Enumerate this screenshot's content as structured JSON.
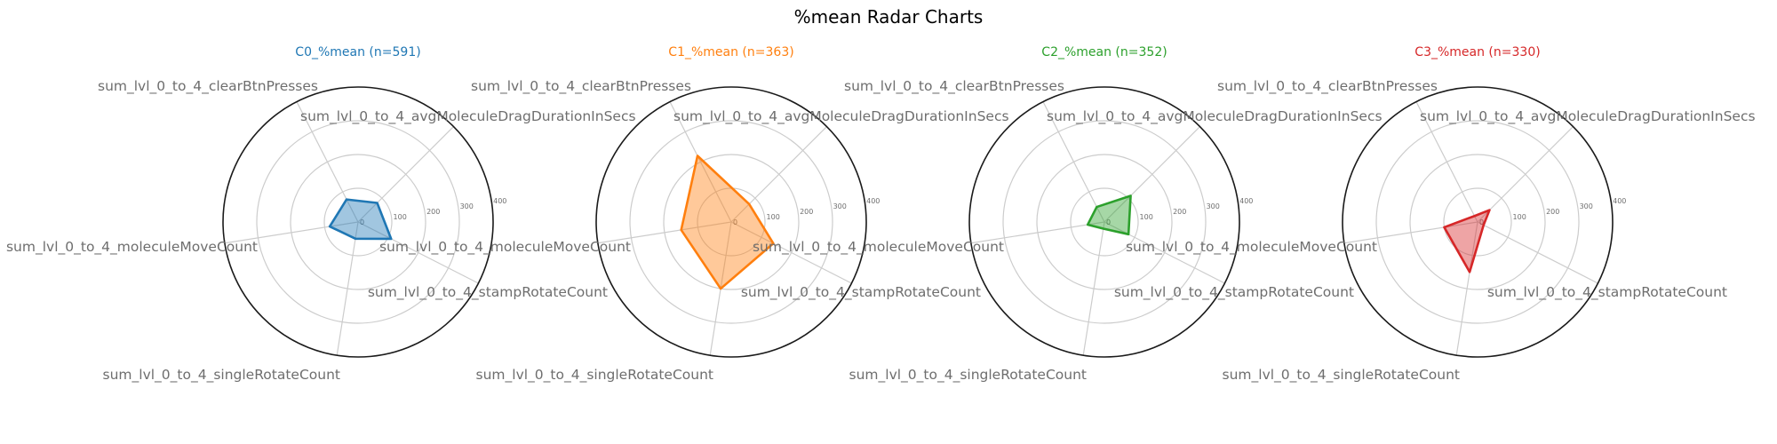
{
  "figure": {
    "title": "%mean Radar Charts"
  },
  "chart_data": [
    {
      "type": "radar",
      "title": "C0_%mean (n=591)",
      "color": "#1f77b4",
      "fill_color": "#1f77b4",
      "rlim": [
        0,
        400
      ],
      "rticks": [
        0,
        100,
        200,
        300,
        400
      ],
      "grid": true,
      "axes": [
        "sum_lvl_0_to_4_avgMoleculeDragDurationInSecs",
        "sum_lvl_0_to_4_clearBtnPresses",
        "sum_lvl_0_to_4_moleculeMoveCount",
        "sum_lvl_0_to_4_singleRotateCount",
        "sum_lvl_0_to_4_stampRotateCount"
      ],
      "values": [
        80,
        75,
        85,
        50,
        110
      ]
    },
    {
      "type": "radar",
      "title": "C1_%mean (n=363)",
      "color": "#ff7f0e",
      "fill_color": "#ff7f0e",
      "rlim": [
        0,
        400
      ],
      "rticks": [
        0,
        100,
        200,
        300,
        400
      ],
      "grid": true,
      "axes": [
        "sum_lvl_0_to_4_avgMoleculeDragDurationInSecs",
        "sum_lvl_0_to_4_clearBtnPresses",
        "sum_lvl_0_to_4_moleculeMoveCount",
        "sum_lvl_0_to_4_singleRotateCount",
        "sum_lvl_0_to_4_stampRotateCount"
      ],
      "values": [
        75,
        220,
        150,
        200,
        140
      ]
    },
    {
      "type": "radar",
      "title": "C2_%mean (n=352)",
      "color": "#2ca02c",
      "fill_color": "#2ca02c",
      "rlim": [
        0,
        400
      ],
      "rticks": [
        0,
        100,
        200,
        300,
        400
      ],
      "grid": true,
      "axes": [
        "sum_lvl_0_to_4_avgMoleculeDragDurationInSecs",
        "sum_lvl_0_to_4_clearBtnPresses",
        "sum_lvl_0_to_4_moleculeMoveCount",
        "sum_lvl_0_to_4_singleRotateCount",
        "sum_lvl_0_to_4_stampRotateCount"
      ],
      "values": [
        110,
        50,
        50,
        20,
        80
      ]
    },
    {
      "type": "radar",
      "title": "C3_%mean (n=330)",
      "color": "#d62728",
      "fill_color": "#d62728",
      "rlim": [
        0,
        400
      ],
      "rticks": [
        0,
        100,
        200,
        300,
        400
      ],
      "grid": true,
      "axes": [
        "sum_lvl_0_to_4_avgMoleculeDragDurationInSecs",
        "sum_lvl_0_to_4_clearBtnPresses",
        "sum_lvl_0_to_4_moleculeMoveCount",
        "sum_lvl_0_to_4_singleRotateCount",
        "sum_lvl_0_to_4_stampRotateCount"
      ],
      "values": [
        50,
        20,
        100,
        150,
        20
      ]
    }
  ]
}
